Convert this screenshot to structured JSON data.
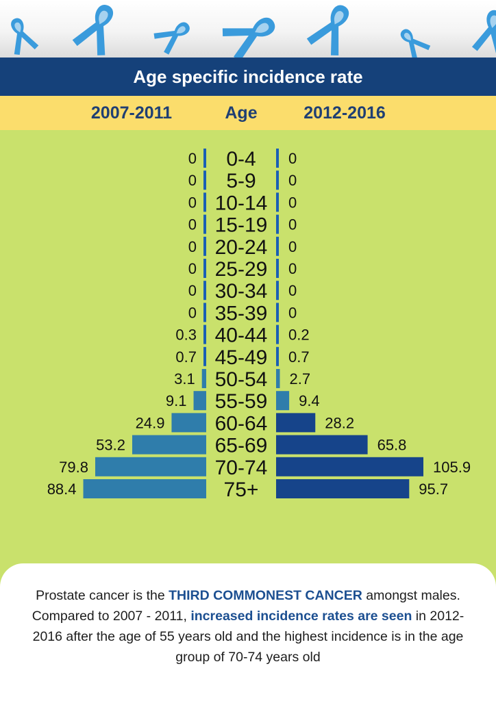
{
  "theme": {
    "title_bg": "#15417a",
    "header_bg": "#fbdd6c",
    "chart_bg": "#c9e16c",
    "ribbon_color": "#3a9bdc",
    "bar_light": "#2f7dab",
    "bar_dark": "#16448a",
    "bar_mid": "#1a5fb4",
    "text_dark": "#1f3f73"
  },
  "decoration": {
    "icon": "awareness-ribbon-icon"
  },
  "title": "Age specific incidence rate",
  "headers": {
    "left": "2007-2011",
    "center": "Age",
    "right": "2012-2016"
  },
  "chart_data": {
    "type": "bar",
    "orientation": "horizontal-butterfly",
    "title": "Age specific incidence rate",
    "categories": [
      "0-4",
      "5-9",
      "10-14",
      "15-19",
      "20-24",
      "25-29",
      "30-34",
      "35-39",
      "40-44",
      "45-49",
      "50-54",
      "55-59",
      "60-64",
      "65-69",
      "70-74",
      "75+"
    ],
    "series": [
      {
        "name": "2007-2011",
        "side": "left",
        "values": [
          0,
          0,
          0,
          0,
          0,
          0,
          0,
          0,
          0.3,
          0.7,
          3.1,
          9.1,
          24.9,
          53.2,
          79.8,
          88.4
        ],
        "labels": [
          "0",
          "0",
          "0",
          "0",
          "0",
          "0",
          "0",
          "0",
          "0.3",
          "0.7",
          "3.1",
          "9.1",
          "24.9",
          "53.2",
          "79.8",
          "88.4"
        ]
      },
      {
        "name": "2012-2016",
        "side": "right",
        "values": [
          0,
          0,
          0,
          0,
          0,
          0,
          0,
          0,
          0.2,
          0.7,
          2.7,
          9.4,
          28.2,
          65.8,
          105.9,
          95.7
        ],
        "labels": [
          "0",
          "0",
          "0",
          "0",
          "0",
          "0",
          "0",
          "0",
          "0.2",
          "0.7",
          "2.7",
          "9.4",
          "28.2",
          "65.8",
          "105.9",
          "95.7"
        ]
      }
    ],
    "xlim": [
      0,
      105.9
    ],
    "grid": false,
    "legend": "none"
  },
  "note": {
    "p1": "Prostate cancer is the ",
    "h1": "THIRD COMMONEST CANCER",
    "p2": " amongst males. Compared to 2007 - 2011, ",
    "h2": "increased incidence rates are seen",
    "p3": " in 2012-2016 after the age of 55 years old and the highest incidence is in the age group of 70-74 years old"
  }
}
